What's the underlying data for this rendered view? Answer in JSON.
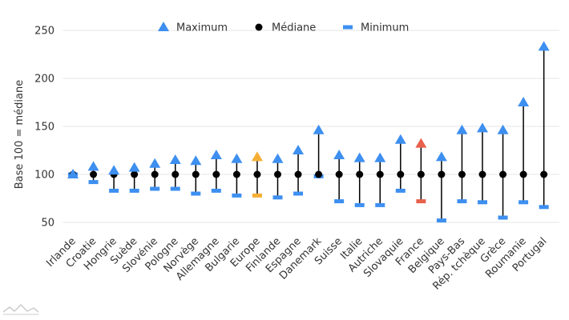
{
  "chart_data": {
    "type": "scatter",
    "ylabel": "Base 100 = médiane",
    "ylim": [
      40,
      250
    ],
    "yticks": [
      50,
      100,
      150,
      200,
      250
    ],
    "grid": true,
    "legend_position": "top",
    "legend": [
      {
        "key": "max",
        "label": "Maximum",
        "marker": "triangle"
      },
      {
        "key": "median",
        "label": "Médiane",
        "marker": "circle"
      },
      {
        "key": "min",
        "label": "Minimum",
        "marker": "dash"
      }
    ],
    "colors": {
      "default": "#3d8ff0",
      "median": "#000000",
      "highlight_europe": "#f5ae35",
      "highlight_france": "#e8604c",
      "grid": "#e6e6e6",
      "axis": "#333333"
    },
    "categories": [
      "Irlande",
      "Croatie",
      "Hongrie",
      "Suède",
      "Slovénie",
      "Pologne",
      "Norvège",
      "Allemagne",
      "Bulgarie",
      "Europe",
      "Finlande",
      "Espagne",
      "Danemark",
      "Suisse",
      "Italie",
      "Autriche",
      "Slovaquie",
      "France",
      "Belgique",
      "Pays-Bas",
      "Rép. tchèque",
      "Grèce",
      "Roumanie",
      "Portugal"
    ],
    "highlights": {
      "Europe": "highlight_europe",
      "France": "highlight_france"
    },
    "series": [
      {
        "key": "max",
        "name": "Maximum",
        "values": [
          100,
          108,
          104,
          107,
          111,
          115,
          114,
          120,
          116,
          118,
          116,
          125,
          146,
          120,
          117,
          117,
          136,
          132,
          118,
          146,
          148,
          146,
          175,
          233
        ]
      },
      {
        "key": "median",
        "name": "Médiane",
        "values": [
          100,
          100,
          100,
          100,
          100,
          100,
          100,
          100,
          100,
          100,
          100,
          100,
          100,
          100,
          100,
          100,
          100,
          100,
          100,
          100,
          100,
          100,
          100,
          100
        ]
      },
      {
        "key": "min",
        "name": "Minimum",
        "values": [
          100,
          92,
          83,
          83,
          85,
          85,
          80,
          83,
          78,
          78,
          76,
          80,
          98,
          72,
          68,
          68,
          83,
          72,
          52,
          72,
          71,
          55,
          71,
          66
        ]
      }
    ]
  }
}
